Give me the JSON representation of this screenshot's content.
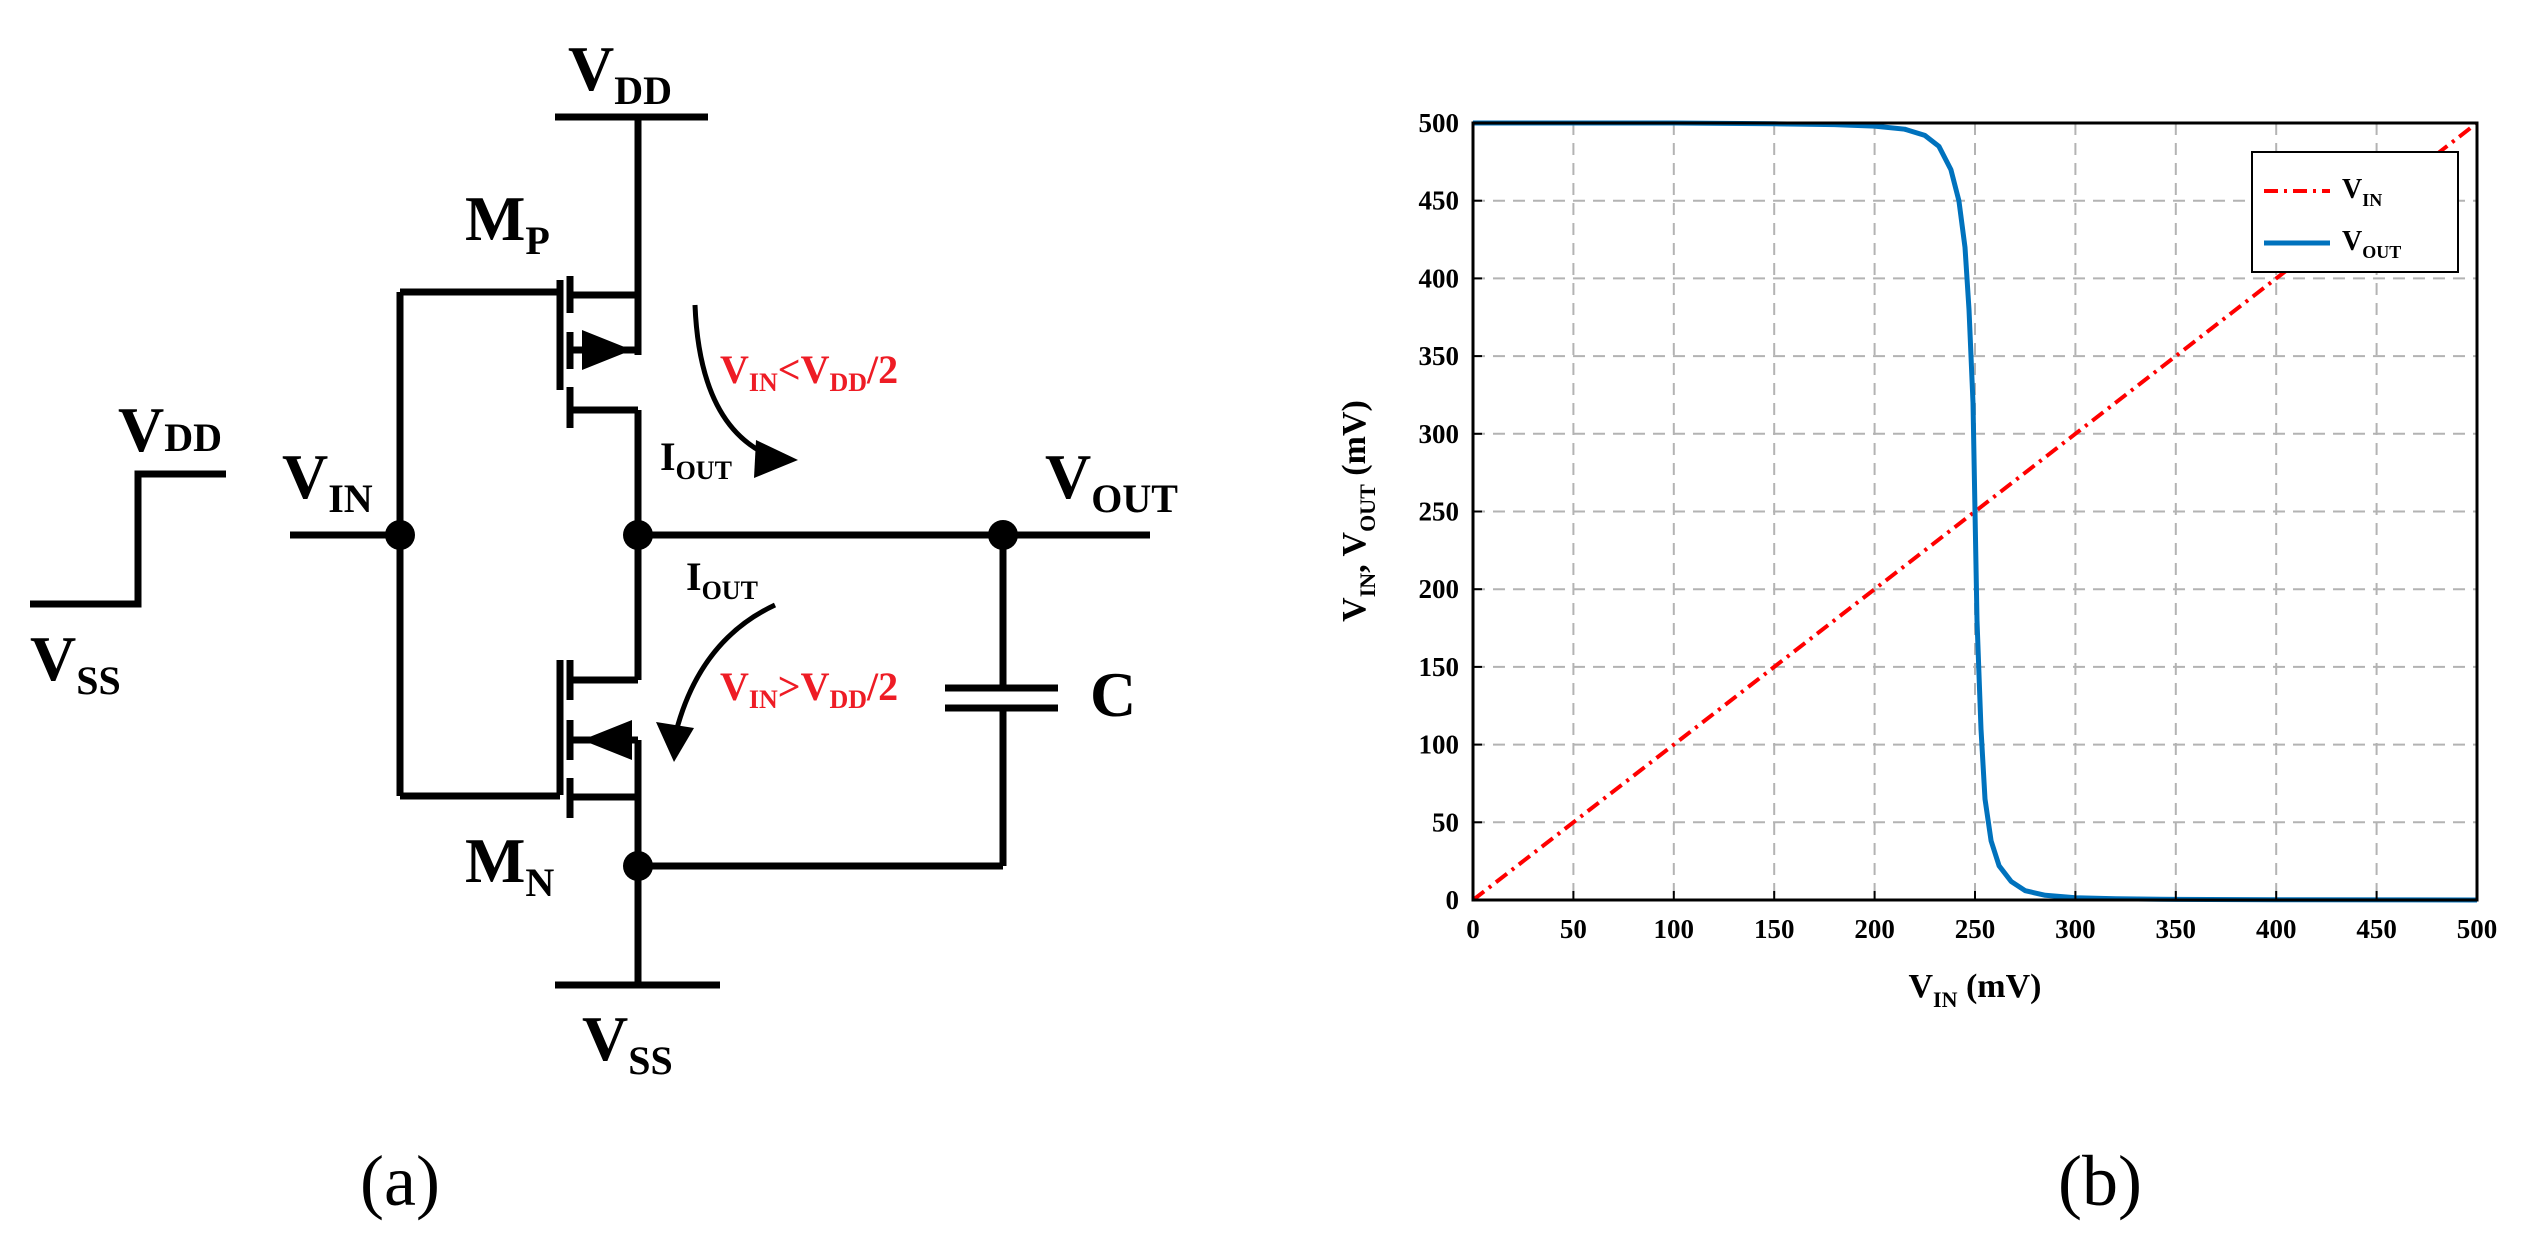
{
  "colors": {
    "ink": "#000000",
    "red": "#ee1c25",
    "vin_line": "#ff0000",
    "vout_line": "#0072bd",
    "grid": "#b3b3b3"
  },
  "panel_a": {
    "caption": "(a)",
    "step": {
      "high_label": "V",
      "high_sub": "DD",
      "low_label": "V",
      "low_sub": "SS"
    },
    "vdd_rail": {
      "label": "V",
      "sub": "DD"
    },
    "vss_rail": {
      "label": "V",
      "sub": "SS"
    },
    "mp": {
      "label": "M",
      "sub": "P"
    },
    "mn": {
      "label": "M",
      "sub": "N"
    },
    "vin": {
      "label": "V",
      "sub": "IN"
    },
    "vout": {
      "label": "V",
      "sub": "OUT"
    },
    "cap": {
      "label": "C"
    },
    "iout_top": {
      "label": "I",
      "sub": "OUT"
    },
    "iout_bottom": {
      "label": "I",
      "sub": "OUT"
    },
    "cond_top": {
      "v1": "V",
      "s1": "IN",
      "op": "<V",
      "s2": "DD",
      "tail": "/2"
    },
    "cond_bottom": {
      "v1": "V",
      "s1": "IN",
      "op": ">V",
      "s2": "DD",
      "tail": "/2"
    }
  },
  "panel_b": {
    "caption": "(b)",
    "xlabel": {
      "main": "V",
      "sub": "IN",
      "tail": " (mV)"
    },
    "ylabel": {
      "main1": "V",
      "sub1": "IN",
      "sep": ", V",
      "sub2": "OUT",
      "tail": " (mV)"
    },
    "legend": [
      {
        "main": "V",
        "sub": "IN"
      },
      {
        "main": "V",
        "sub": "OUT"
      }
    ]
  },
  "chart_data": {
    "type": "line",
    "xlim": [
      0,
      500
    ],
    "ylim": [
      0,
      500
    ],
    "xticks": [
      0,
      50,
      100,
      150,
      200,
      250,
      300,
      350,
      400,
      450,
      500
    ],
    "yticks": [
      0,
      50,
      100,
      150,
      200,
      250,
      300,
      350,
      400,
      450,
      500
    ],
    "grid": true,
    "legend_position": "top-right",
    "series": [
      {
        "name": "V_IN",
        "style": "dash-dot",
        "x": [
          0,
          500
        ],
        "y": [
          0,
          500
        ]
      },
      {
        "name": "V_OUT",
        "style": "solid",
        "x": [
          0,
          100,
          150,
          180,
          200,
          215,
          225,
          232,
          238,
          242,
          245,
          247,
          249,
          250,
          251,
          253,
          255,
          258,
          262,
          268,
          275,
          285,
          300,
          320,
          350,
          400,
          500
        ],
        "y": [
          500,
          500,
          499.5,
          499,
          498,
          496,
          492,
          485,
          470,
          450,
          420,
          380,
          320,
          250,
          180,
          110,
          65,
          38,
          22,
          12,
          6,
          3,
          1.5,
          0.8,
          0.4,
          0.2,
          0
        ]
      }
    ]
  }
}
